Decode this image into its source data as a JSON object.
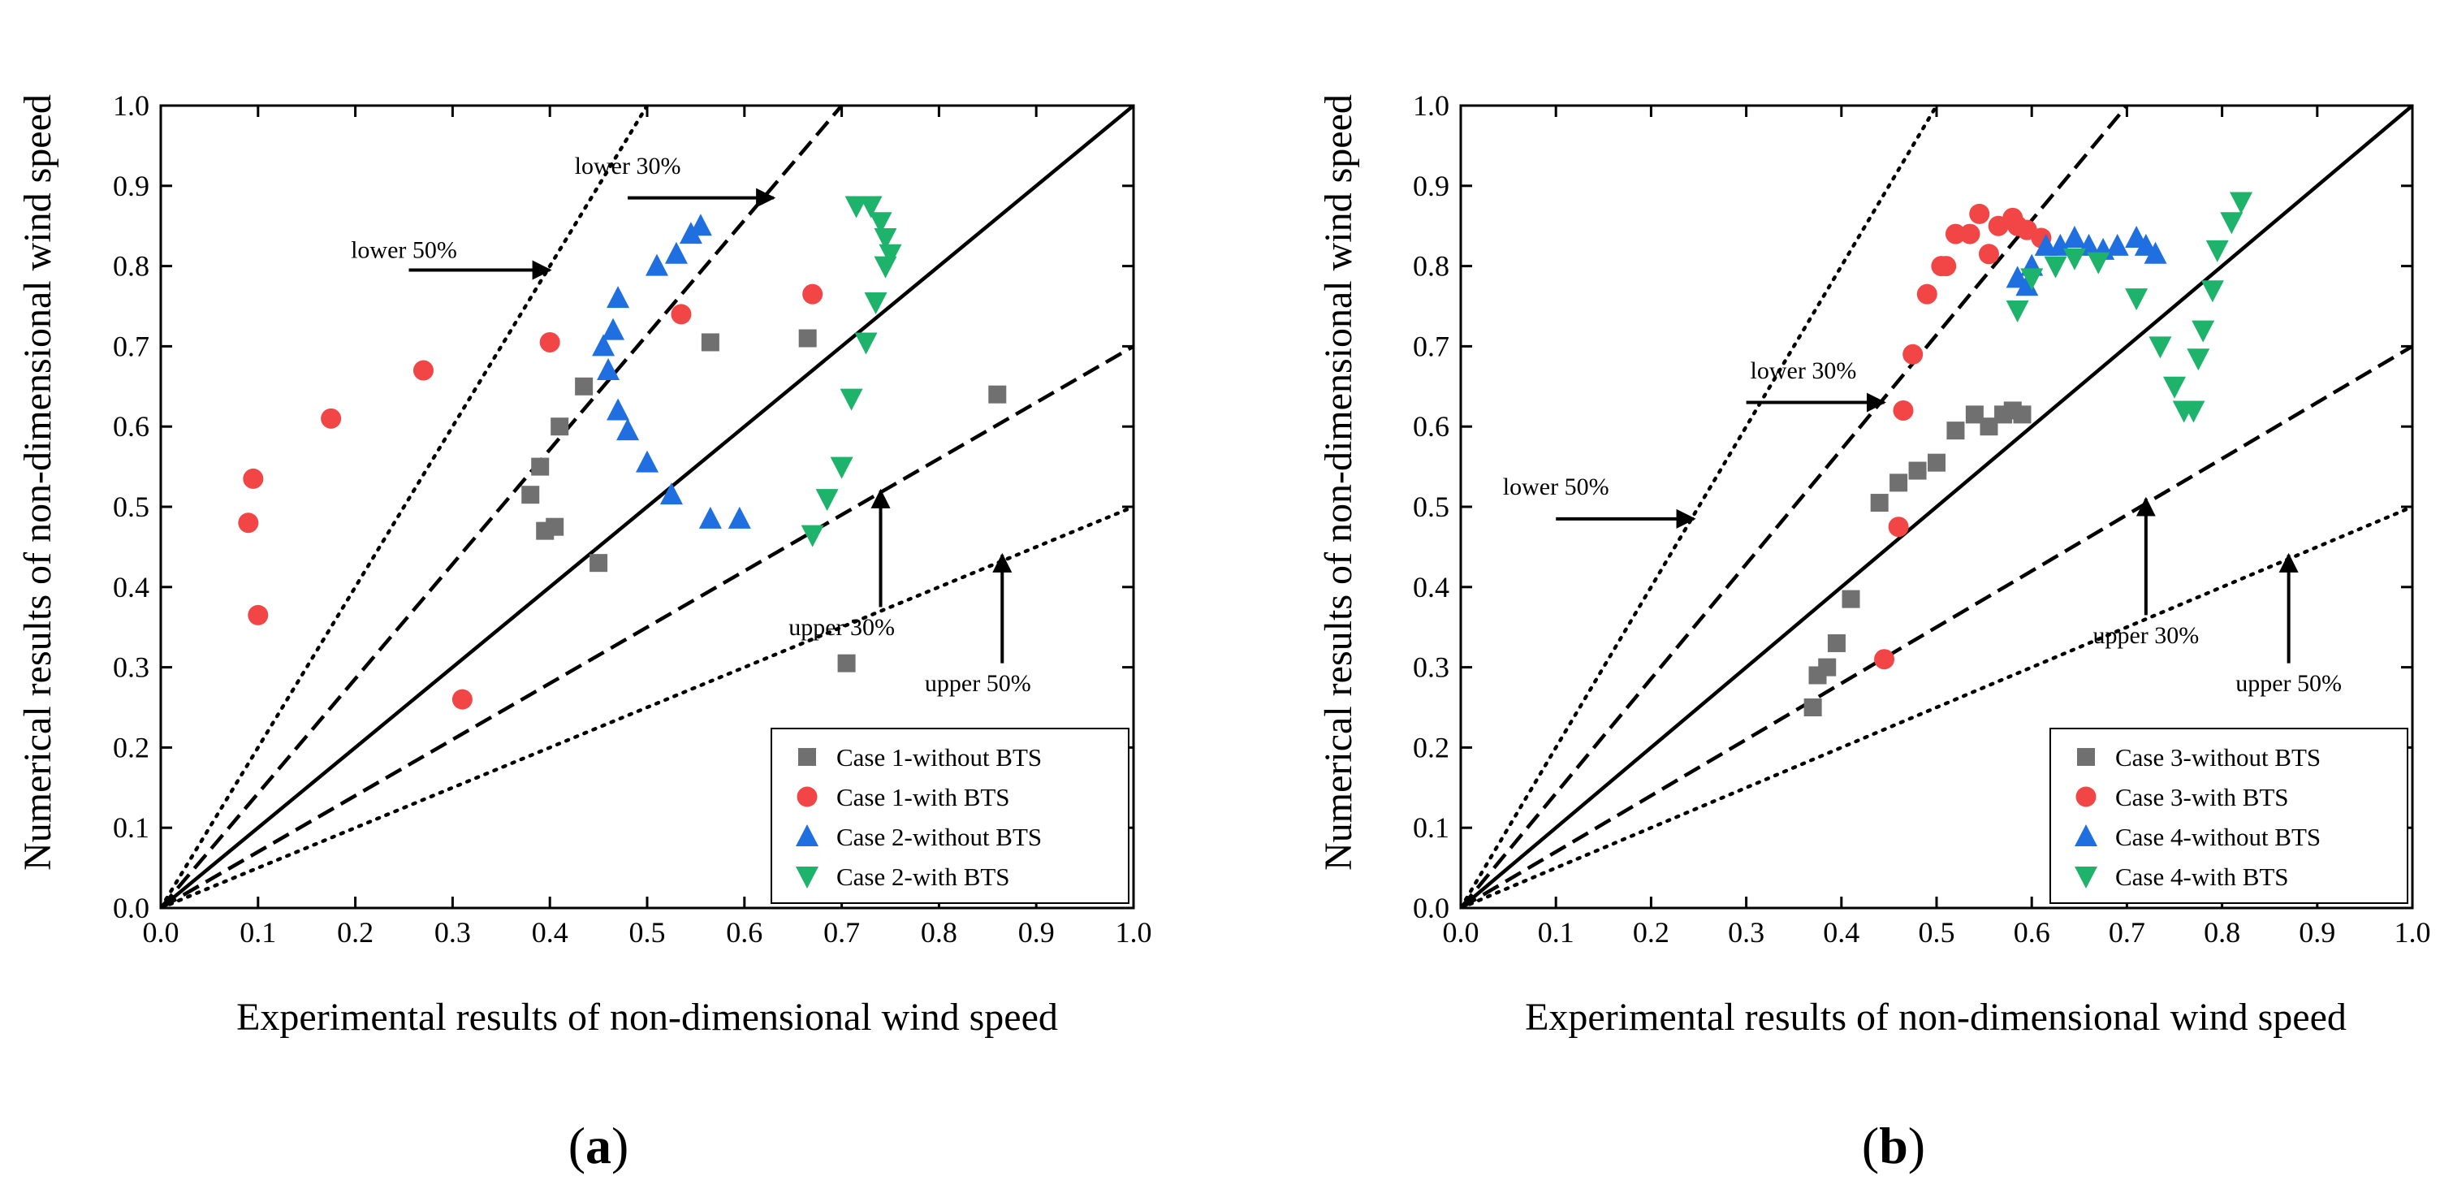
{
  "chart_data": [
    {
      "type": "scatter",
      "panel_label": "a",
      "xlabel": "Experimental results of non-dimensional wind speed",
      "ylabel": "Numerical results of non-dimensional wind speed",
      "xlim": [
        0,
        1
      ],
      "ylim": [
        0,
        1
      ],
      "xticks": [
        "0.0",
        "0.1",
        "0.2",
        "0.3",
        "0.4",
        "0.5",
        "0.6",
        "0.7",
        "0.8",
        "0.9",
        "1.0"
      ],
      "yticks": [
        "0.0",
        "0.1",
        "0.2",
        "0.3",
        "0.4",
        "0.5",
        "0.6",
        "0.7",
        "0.8",
        "0.9",
        "1.0"
      ],
      "reference_lines": [
        {
          "name": "perfect",
          "slope": 1.0,
          "style": "solid"
        },
        {
          "name": "lower30",
          "slope": 1.4286,
          "style": "dashed"
        },
        {
          "name": "upper30",
          "slope": 0.7,
          "style": "dashed"
        },
        {
          "name": "lower50",
          "slope": 2.0,
          "style": "dotted"
        },
        {
          "name": "upper50",
          "slope": 0.5,
          "style": "dotted"
        }
      ],
      "annotations": [
        {
          "text": "lower 50%",
          "x": 0.25,
          "y": 0.81,
          "arrow": {
            "from": [
              0.255,
              0.795
            ],
            "to": [
              0.4,
              0.795
            ]
          }
        },
        {
          "text": "lower 30%",
          "x": 0.48,
          "y": 0.915,
          "arrow": {
            "from": [
              0.48,
              0.885
            ],
            "to": [
              0.63,
              0.885
            ]
          }
        },
        {
          "text": "upper 30%",
          "x": 0.7,
          "y": 0.34,
          "arrow": {
            "from": [
              0.74,
              0.375
            ],
            "to": [
              0.74,
              0.52
            ]
          }
        },
        {
          "text": "upper 50%",
          "x": 0.84,
          "y": 0.27,
          "arrow": {
            "from": [
              0.865,
              0.305
            ],
            "to": [
              0.865,
              0.44
            ]
          }
        }
      ],
      "legend": {
        "position": "bottom-right",
        "entries": [
          {
            "label": "Case 1-without BTS",
            "marker": "square",
            "color": "#707070"
          },
          {
            "label": "Case 1-with BTS",
            "marker": "circle",
            "color": "#f24646"
          },
          {
            "label": "Case 2-without BTS",
            "marker": "triangle-up",
            "color": "#1f6fe0"
          },
          {
            "label": "Case 2-with BTS",
            "marker": "triangle-down",
            "color": "#1db36a"
          }
        ]
      },
      "series": [
        {
          "name": "Case 1-without BTS",
          "marker": "square",
          "color": "#707070",
          "points": [
            [
              0.38,
              0.515
            ],
            [
              0.39,
              0.55
            ],
            [
              0.395,
              0.47
            ],
            [
              0.405,
              0.475
            ],
            [
              0.41,
              0.6
            ],
            [
              0.435,
              0.65
            ],
            [
              0.45,
              0.43
            ],
            [
              0.565,
              0.705
            ],
            [
              0.665,
              0.71
            ],
            [
              0.705,
              0.305
            ],
            [
              0.86,
              0.64
            ]
          ]
        },
        {
          "name": "Case 1-with BTS",
          "marker": "circle",
          "color": "#f24646",
          "points": [
            [
              0.09,
              0.48
            ],
            [
              0.095,
              0.535
            ],
            [
              0.1,
              0.365
            ],
            [
              0.175,
              0.61
            ],
            [
              0.27,
              0.67
            ],
            [
              0.31,
              0.26
            ],
            [
              0.4,
              0.705
            ],
            [
              0.535,
              0.74
            ],
            [
              0.67,
              0.765
            ]
          ]
        },
        {
          "name": "Case 2-without BTS",
          "marker": "triangle-up",
          "color": "#1f6fe0",
          "points": [
            [
              0.455,
              0.7
            ],
            [
              0.46,
              0.67
            ],
            [
              0.465,
              0.72
            ],
            [
              0.47,
              0.76
            ],
            [
              0.47,
              0.62
            ],
            [
              0.48,
              0.595
            ],
            [
              0.5,
              0.555
            ],
            [
              0.51,
              0.8
            ],
            [
              0.525,
              0.515
            ],
            [
              0.53,
              0.815
            ],
            [
              0.545,
              0.84
            ],
            [
              0.555,
              0.85
            ],
            [
              0.565,
              0.485
            ],
            [
              0.595,
              0.485
            ]
          ]
        },
        {
          "name": "Case 2-with BTS",
          "marker": "triangle-down",
          "color": "#1db36a",
          "points": [
            [
              0.67,
              0.465
            ],
            [
              0.685,
              0.51
            ],
            [
              0.7,
              0.55
            ],
            [
              0.71,
              0.635
            ],
            [
              0.715,
              0.875
            ],
            [
              0.725,
              0.705
            ],
            [
              0.73,
              0.875
            ],
            [
              0.735,
              0.755
            ],
            [
              0.74,
              0.855
            ],
            [
              0.745,
              0.8
            ],
            [
              0.745,
              0.835
            ],
            [
              0.75,
              0.815
            ]
          ]
        }
      ]
    },
    {
      "type": "scatter",
      "panel_label": "b",
      "xlabel": "Experimental results of non-dimensional wind speed",
      "ylabel": "Numerical results of non-dimensional wind speed",
      "xlim": [
        0,
        1
      ],
      "ylim": [
        0,
        1
      ],
      "xticks": [
        "0.0",
        "0.1",
        "0.2",
        "0.3",
        "0.4",
        "0.5",
        "0.6",
        "0.7",
        "0.8",
        "0.9",
        "1.0"
      ],
      "yticks": [
        "0.0",
        "0.1",
        "0.2",
        "0.3",
        "0.4",
        "0.5",
        "0.6",
        "0.7",
        "0.8",
        "0.9",
        "1.0"
      ],
      "reference_lines": [
        {
          "name": "perfect",
          "slope": 1.0,
          "style": "solid"
        },
        {
          "name": "lower30",
          "slope": 1.4286,
          "style": "dashed"
        },
        {
          "name": "upper30",
          "slope": 0.7,
          "style": "dashed"
        },
        {
          "name": "lower50",
          "slope": 2.0,
          "style": "dotted"
        },
        {
          "name": "upper50",
          "slope": 0.5,
          "style": "dotted"
        }
      ],
      "annotations": [
        {
          "text": "lower 50%",
          "x": 0.1,
          "y": 0.515,
          "arrow": {
            "from": [
              0.1,
              0.485
            ],
            "to": [
              0.245,
              0.485
            ]
          }
        },
        {
          "text": "lower 30%",
          "x": 0.36,
          "y": 0.66,
          "arrow": {
            "from": [
              0.3,
              0.63
            ],
            "to": [
              0.445,
              0.63
            ]
          }
        },
        {
          "text": "upper 30%",
          "x": 0.72,
          "y": 0.33,
          "arrow": {
            "from": [
              0.72,
              0.365
            ],
            "to": [
              0.72,
              0.51
            ]
          }
        },
        {
          "text": "upper 50%",
          "x": 0.87,
          "y": 0.27,
          "arrow": {
            "from": [
              0.87,
              0.305
            ],
            "to": [
              0.87,
              0.44
            ]
          }
        }
      ],
      "legend": {
        "position": "bottom-right",
        "entries": [
          {
            "label": "Case 3-without BTS",
            "marker": "square",
            "color": "#707070"
          },
          {
            "label": "Case 3-with BTS",
            "marker": "circle",
            "color": "#f24646"
          },
          {
            "label": "Case 4-without BTS",
            "marker": "triangle-up",
            "color": "#1f6fe0"
          },
          {
            "label": "Case 4-with BTS",
            "marker": "triangle-down",
            "color": "#1db36a"
          }
        ]
      },
      "series": [
        {
          "name": "Case 3-without BTS",
          "marker": "square",
          "color": "#707070",
          "points": [
            [
              0.37,
              0.25
            ],
            [
              0.375,
              0.29
            ],
            [
              0.385,
              0.3
            ],
            [
              0.395,
              0.33
            ],
            [
              0.41,
              0.385
            ],
            [
              0.44,
              0.505
            ],
            [
              0.46,
              0.53
            ],
            [
              0.48,
              0.545
            ],
            [
              0.5,
              0.555
            ],
            [
              0.52,
              0.595
            ],
            [
              0.54,
              0.615
            ],
            [
              0.555,
              0.6
            ],
            [
              0.57,
              0.615
            ],
            [
              0.58,
              0.62
            ],
            [
              0.59,
              0.615
            ]
          ]
        },
        {
          "name": "Case 3-with BTS",
          "marker": "circle",
          "color": "#f24646",
          "points": [
            [
              0.445,
              0.31
            ],
            [
              0.46,
              0.475
            ],
            [
              0.465,
              0.62
            ],
            [
              0.475,
              0.69
            ],
            [
              0.49,
              0.765
            ],
            [
              0.505,
              0.8
            ],
            [
              0.51,
              0.8
            ],
            [
              0.52,
              0.84
            ],
            [
              0.535,
              0.84
            ],
            [
              0.545,
              0.865
            ],
            [
              0.555,
              0.815
            ],
            [
              0.565,
              0.85
            ],
            [
              0.58,
              0.86
            ],
            [
              0.585,
              0.85
            ],
            [
              0.595,
              0.845
            ],
            [
              0.61,
              0.835
            ]
          ]
        },
        {
          "name": "Case 4-without BTS",
          "marker": "triangle-up",
          "color": "#1f6fe0",
          "points": [
            [
              0.585,
              0.785
            ],
            [
              0.595,
              0.775
            ],
            [
              0.6,
              0.8
            ],
            [
              0.615,
              0.825
            ],
            [
              0.63,
              0.825
            ],
            [
              0.645,
              0.835
            ],
            [
              0.66,
              0.825
            ],
            [
              0.675,
              0.82
            ],
            [
              0.69,
              0.825
            ],
            [
              0.71,
              0.835
            ],
            [
              0.72,
              0.825
            ],
            [
              0.73,
              0.815
            ]
          ]
        },
        {
          "name": "Case 4-with BTS",
          "marker": "triangle-down",
          "color": "#1db36a",
          "points": [
            [
              0.585,
              0.745
            ],
            [
              0.6,
              0.785
            ],
            [
              0.625,
              0.8
            ],
            [
              0.645,
              0.81
            ],
            [
              0.67,
              0.805
            ],
            [
              0.71,
              0.76
            ],
            [
              0.735,
              0.7
            ],
            [
              0.75,
              0.65
            ],
            [
              0.76,
              0.62
            ],
            [
              0.77,
              0.62
            ],
            [
              0.775,
              0.685
            ],
            [
              0.78,
              0.72
            ],
            [
              0.79,
              0.77
            ],
            [
              0.795,
              0.82
            ],
            [
              0.81,
              0.855
            ],
            [
              0.82,
              0.88
            ]
          ]
        }
      ]
    }
  ]
}
